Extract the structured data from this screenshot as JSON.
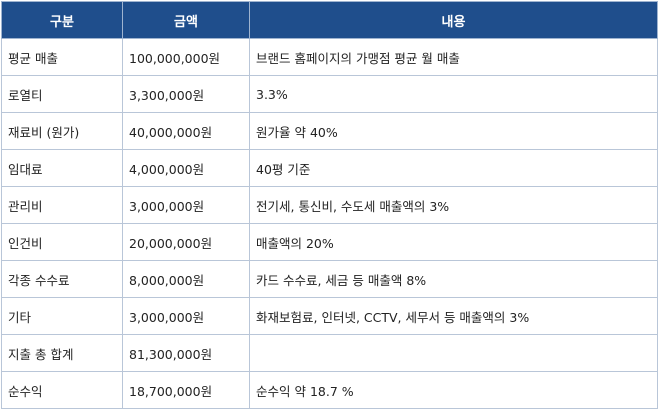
{
  "table": {
    "headers": [
      "구분",
      "금액",
      "내용"
    ],
    "rows": [
      [
        "평균 매출",
        "100,000,000원",
        "브랜드 홈페이지의 가맹점 평균 월 매출"
      ],
      [
        "로열티",
        "3,300,000원",
        "3.3%"
      ],
      [
        "재료비 (원가)",
        "40,000,000원",
        "원가율 약 40%"
      ],
      [
        "임대료",
        "4,000,000원",
        "40평 기준"
      ],
      [
        "관리비",
        "3,000,000원",
        "전기세, 통신비, 수도세 매출액의 3%"
      ],
      [
        "인건비",
        "20,000,000원",
        "매출액의 20%"
      ],
      [
        "각종 수수료",
        "8,000,000원",
        "카드 수수료, 세금 등 매출액 8%"
      ],
      [
        "기타",
        "3,000,000원",
        "화재보험료, 인터넷, CCTV, 세무서 등 매출액의 3%"
      ],
      [
        "지출 총 합계",
        "81,300,000원",
        ""
      ],
      [
        "순수익",
        "18,700,000원",
        "순수익 약 18.7 %"
      ]
    ]
  },
  "colors": {
    "header_bg": "#1f4e8c",
    "header_text": "#ffffff",
    "border": "#b9c6d8"
  }
}
